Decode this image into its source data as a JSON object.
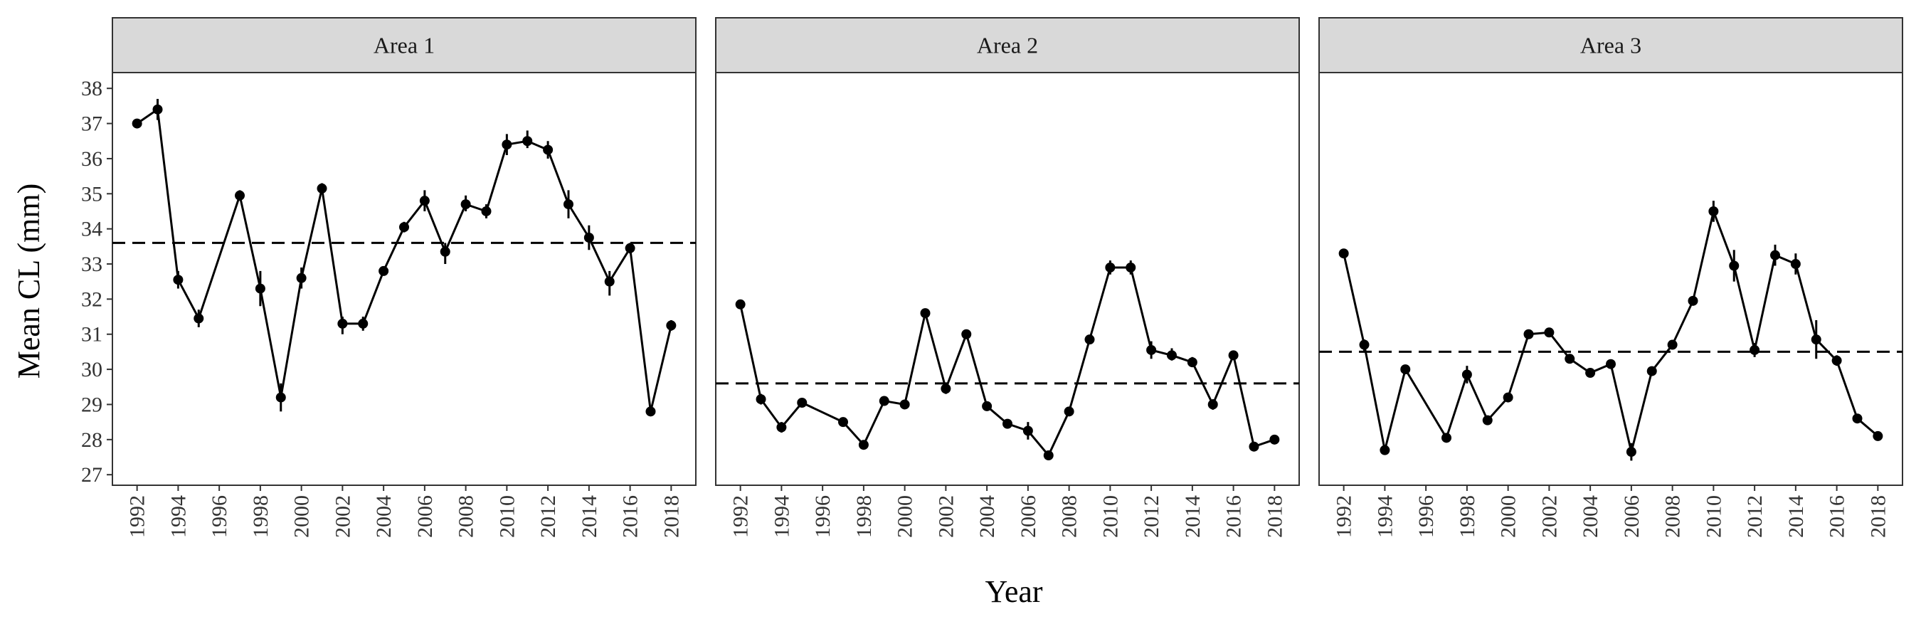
{
  "chart_data": {
    "type": "line",
    "ylabel": "Mean CL (mm)",
    "xlabel": "Year",
    "ylim": [
      27,
      38
    ],
    "yticks": [
      27,
      28,
      29,
      30,
      31,
      32,
      33,
      34,
      35,
      36,
      37,
      38
    ],
    "xticks": [
      1992,
      1994,
      1996,
      1998,
      2000,
      2002,
      2004,
      2006,
      2008,
      2010,
      2012,
      2014,
      2016,
      2018
    ],
    "xlim": [
      1990.8,
      2019.2
    ],
    "grid": false,
    "legend": "none",
    "colors": {
      "line": "#000000",
      "strip_fill": "#d9d9d9",
      "border": "#333333"
    },
    "panels": [
      {
        "name": "Area 1",
        "mean_line": 33.6,
        "points": [
          {
            "x": 1992,
            "y": 37.0,
            "lo": 36.9,
            "hi": 37.1
          },
          {
            "x": 1993,
            "y": 37.4,
            "lo": 37.1,
            "hi": 37.7
          },
          {
            "x": 1994,
            "y": 32.55,
            "lo": 32.3,
            "hi": 32.8
          },
          {
            "x": 1995,
            "y": 31.45,
            "lo": 31.2,
            "hi": 31.7
          },
          {
            "x": 1997,
            "y": 34.95,
            "lo": 34.8,
            "hi": 35.1
          },
          {
            "x": 1998,
            "y": 32.3,
            "lo": 31.8,
            "hi": 32.8
          },
          {
            "x": 1999,
            "y": 29.2,
            "lo": 28.8,
            "hi": 29.6
          },
          {
            "x": 2000,
            "y": 32.6,
            "lo": 32.3,
            "hi": 32.9
          },
          {
            "x": 2001,
            "y": 35.15,
            "lo": 35.0,
            "hi": 35.3
          },
          {
            "x": 2002,
            "y": 31.3,
            "lo": 31.0,
            "hi": 31.5
          },
          {
            "x": 2003,
            "y": 31.3,
            "lo": 31.1,
            "hi": 31.5
          },
          {
            "x": 2004,
            "y": 32.8,
            "lo": 32.7,
            "hi": 32.9
          },
          {
            "x": 2005,
            "y": 34.05,
            "lo": 33.9,
            "hi": 34.2
          },
          {
            "x": 2006,
            "y": 34.8,
            "lo": 34.5,
            "hi": 35.1
          },
          {
            "x": 2007,
            "y": 33.35,
            "lo": 33.0,
            "hi": 33.6
          },
          {
            "x": 2008,
            "y": 34.7,
            "lo": 34.5,
            "hi": 34.95
          },
          {
            "x": 2009,
            "y": 34.5,
            "lo": 34.3,
            "hi": 34.7
          },
          {
            "x": 2010,
            "y": 36.4,
            "lo": 36.1,
            "hi": 36.7
          },
          {
            "x": 2011,
            "y": 36.5,
            "lo": 36.3,
            "hi": 36.8
          },
          {
            "x": 2012,
            "y": 36.25,
            "lo": 36.0,
            "hi": 36.5
          },
          {
            "x": 2013,
            "y": 34.7,
            "lo": 34.3,
            "hi": 35.1
          },
          {
            "x": 2014,
            "y": 33.75,
            "lo": 33.4,
            "hi": 34.1
          },
          {
            "x": 2015,
            "y": 32.5,
            "lo": 32.1,
            "hi": 32.8
          },
          {
            "x": 2016,
            "y": 33.45,
            "lo": 33.3,
            "hi": 33.6
          },
          {
            "x": 2017,
            "y": 28.8,
            "lo": 28.7,
            "hi": 28.95
          },
          {
            "x": 2018,
            "y": 31.25,
            "lo": 31.1,
            "hi": 31.4
          }
        ]
      },
      {
        "name": "Area 2",
        "mean_line": 29.6,
        "points": [
          {
            "x": 1992,
            "y": 31.85,
            "lo": 31.75,
            "hi": 31.95
          },
          {
            "x": 1993,
            "y": 29.15,
            "lo": 29.0,
            "hi": 29.3
          },
          {
            "x": 1994,
            "y": 28.35,
            "lo": 28.2,
            "hi": 28.5
          },
          {
            "x": 1995,
            "y": 29.05,
            "lo": 28.95,
            "hi": 29.15
          },
          {
            "x": 1997,
            "y": 28.5,
            "lo": 28.4,
            "hi": 28.6
          },
          {
            "x": 1998,
            "y": 27.85,
            "lo": 27.75,
            "hi": 27.95
          },
          {
            "x": 1999,
            "y": 29.1,
            "lo": 29.0,
            "hi": 29.2
          },
          {
            "x": 2000,
            "y": 29.0,
            "lo": 28.9,
            "hi": 29.1
          },
          {
            "x": 2001,
            "y": 31.6,
            "lo": 31.5,
            "hi": 31.7
          },
          {
            "x": 2002,
            "y": 29.45,
            "lo": 29.3,
            "hi": 29.6
          },
          {
            "x": 2003,
            "y": 31.0,
            "lo": 30.9,
            "hi": 31.1
          },
          {
            "x": 2004,
            "y": 28.95,
            "lo": 28.85,
            "hi": 29.05
          },
          {
            "x": 2005,
            "y": 28.45,
            "lo": 28.35,
            "hi": 28.55
          },
          {
            "x": 2006,
            "y": 28.25,
            "lo": 28.0,
            "hi": 28.5
          },
          {
            "x": 2007,
            "y": 27.55,
            "lo": 27.45,
            "hi": 27.65
          },
          {
            "x": 2008,
            "y": 28.8,
            "lo": 28.7,
            "hi": 28.9
          },
          {
            "x": 2009,
            "y": 30.85,
            "lo": 30.75,
            "hi": 30.95
          },
          {
            "x": 2010,
            "y": 32.9,
            "lo": 32.7,
            "hi": 33.1
          },
          {
            "x": 2011,
            "y": 32.9,
            "lo": 32.7,
            "hi": 33.1
          },
          {
            "x": 2012,
            "y": 30.55,
            "lo": 30.3,
            "hi": 30.8
          },
          {
            "x": 2013,
            "y": 30.4,
            "lo": 30.25,
            "hi": 30.6
          },
          {
            "x": 2014,
            "y": 30.2,
            "lo": 30.1,
            "hi": 30.35
          },
          {
            "x": 2015,
            "y": 29.0,
            "lo": 28.85,
            "hi": 29.15
          },
          {
            "x": 2016,
            "y": 30.4,
            "lo": 30.3,
            "hi": 30.5
          },
          {
            "x": 2017,
            "y": 27.8,
            "lo": 27.7,
            "hi": 27.9
          },
          {
            "x": 2018,
            "y": 28.0,
            "lo": 27.9,
            "hi": 28.1
          }
        ]
      },
      {
        "name": "Area 3",
        "mean_line": 30.5,
        "points": [
          {
            "x": 1992,
            "y": 33.3,
            "lo": 33.2,
            "hi": 33.4
          },
          {
            "x": 1993,
            "y": 30.7,
            "lo": 30.5,
            "hi": 30.85
          },
          {
            "x": 1994,
            "y": 27.7,
            "lo": 27.6,
            "hi": 27.8
          },
          {
            "x": 1995,
            "y": 30.0,
            "lo": 29.9,
            "hi": 30.1
          },
          {
            "x": 1997,
            "y": 28.05,
            "lo": 27.95,
            "hi": 28.15
          },
          {
            "x": 1998,
            "y": 29.85,
            "lo": 29.6,
            "hi": 30.1
          },
          {
            "x": 1999,
            "y": 28.55,
            "lo": 28.45,
            "hi": 28.65
          },
          {
            "x": 2000,
            "y": 29.2,
            "lo": 29.1,
            "hi": 29.3
          },
          {
            "x": 2001,
            "y": 31.0,
            "lo": 30.9,
            "hi": 31.1
          },
          {
            "x": 2002,
            "y": 31.05,
            "lo": 30.95,
            "hi": 31.15
          },
          {
            "x": 2003,
            "y": 30.3,
            "lo": 30.2,
            "hi": 30.4
          },
          {
            "x": 2004,
            "y": 29.9,
            "lo": 29.8,
            "hi": 30.0
          },
          {
            "x": 2005,
            "y": 30.15,
            "lo": 30.05,
            "hi": 30.25
          },
          {
            "x": 2006,
            "y": 27.65,
            "lo": 27.4,
            "hi": 27.9
          },
          {
            "x": 2007,
            "y": 29.95,
            "lo": 29.85,
            "hi": 30.05
          },
          {
            "x": 2008,
            "y": 30.7,
            "lo": 30.6,
            "hi": 30.8
          },
          {
            "x": 2009,
            "y": 31.95,
            "lo": 31.85,
            "hi": 32.05
          },
          {
            "x": 2010,
            "y": 34.5,
            "lo": 34.2,
            "hi": 34.8
          },
          {
            "x": 2011,
            "y": 32.95,
            "lo": 32.5,
            "hi": 33.4
          },
          {
            "x": 2012,
            "y": 30.55,
            "lo": 30.35,
            "hi": 30.75
          },
          {
            "x": 2013,
            "y": 33.25,
            "lo": 32.95,
            "hi": 33.55
          },
          {
            "x": 2014,
            "y": 33.0,
            "lo": 32.7,
            "hi": 33.3
          },
          {
            "x": 2015,
            "y": 30.85,
            "lo": 30.3,
            "hi": 31.4
          },
          {
            "x": 2016,
            "y": 30.25,
            "lo": 30.1,
            "hi": 30.4
          },
          {
            "x": 2017,
            "y": 28.6,
            "lo": 28.5,
            "hi": 28.7
          },
          {
            "x": 2018,
            "y": 28.1,
            "lo": 28.0,
            "hi": 28.2
          }
        ]
      }
    ]
  }
}
